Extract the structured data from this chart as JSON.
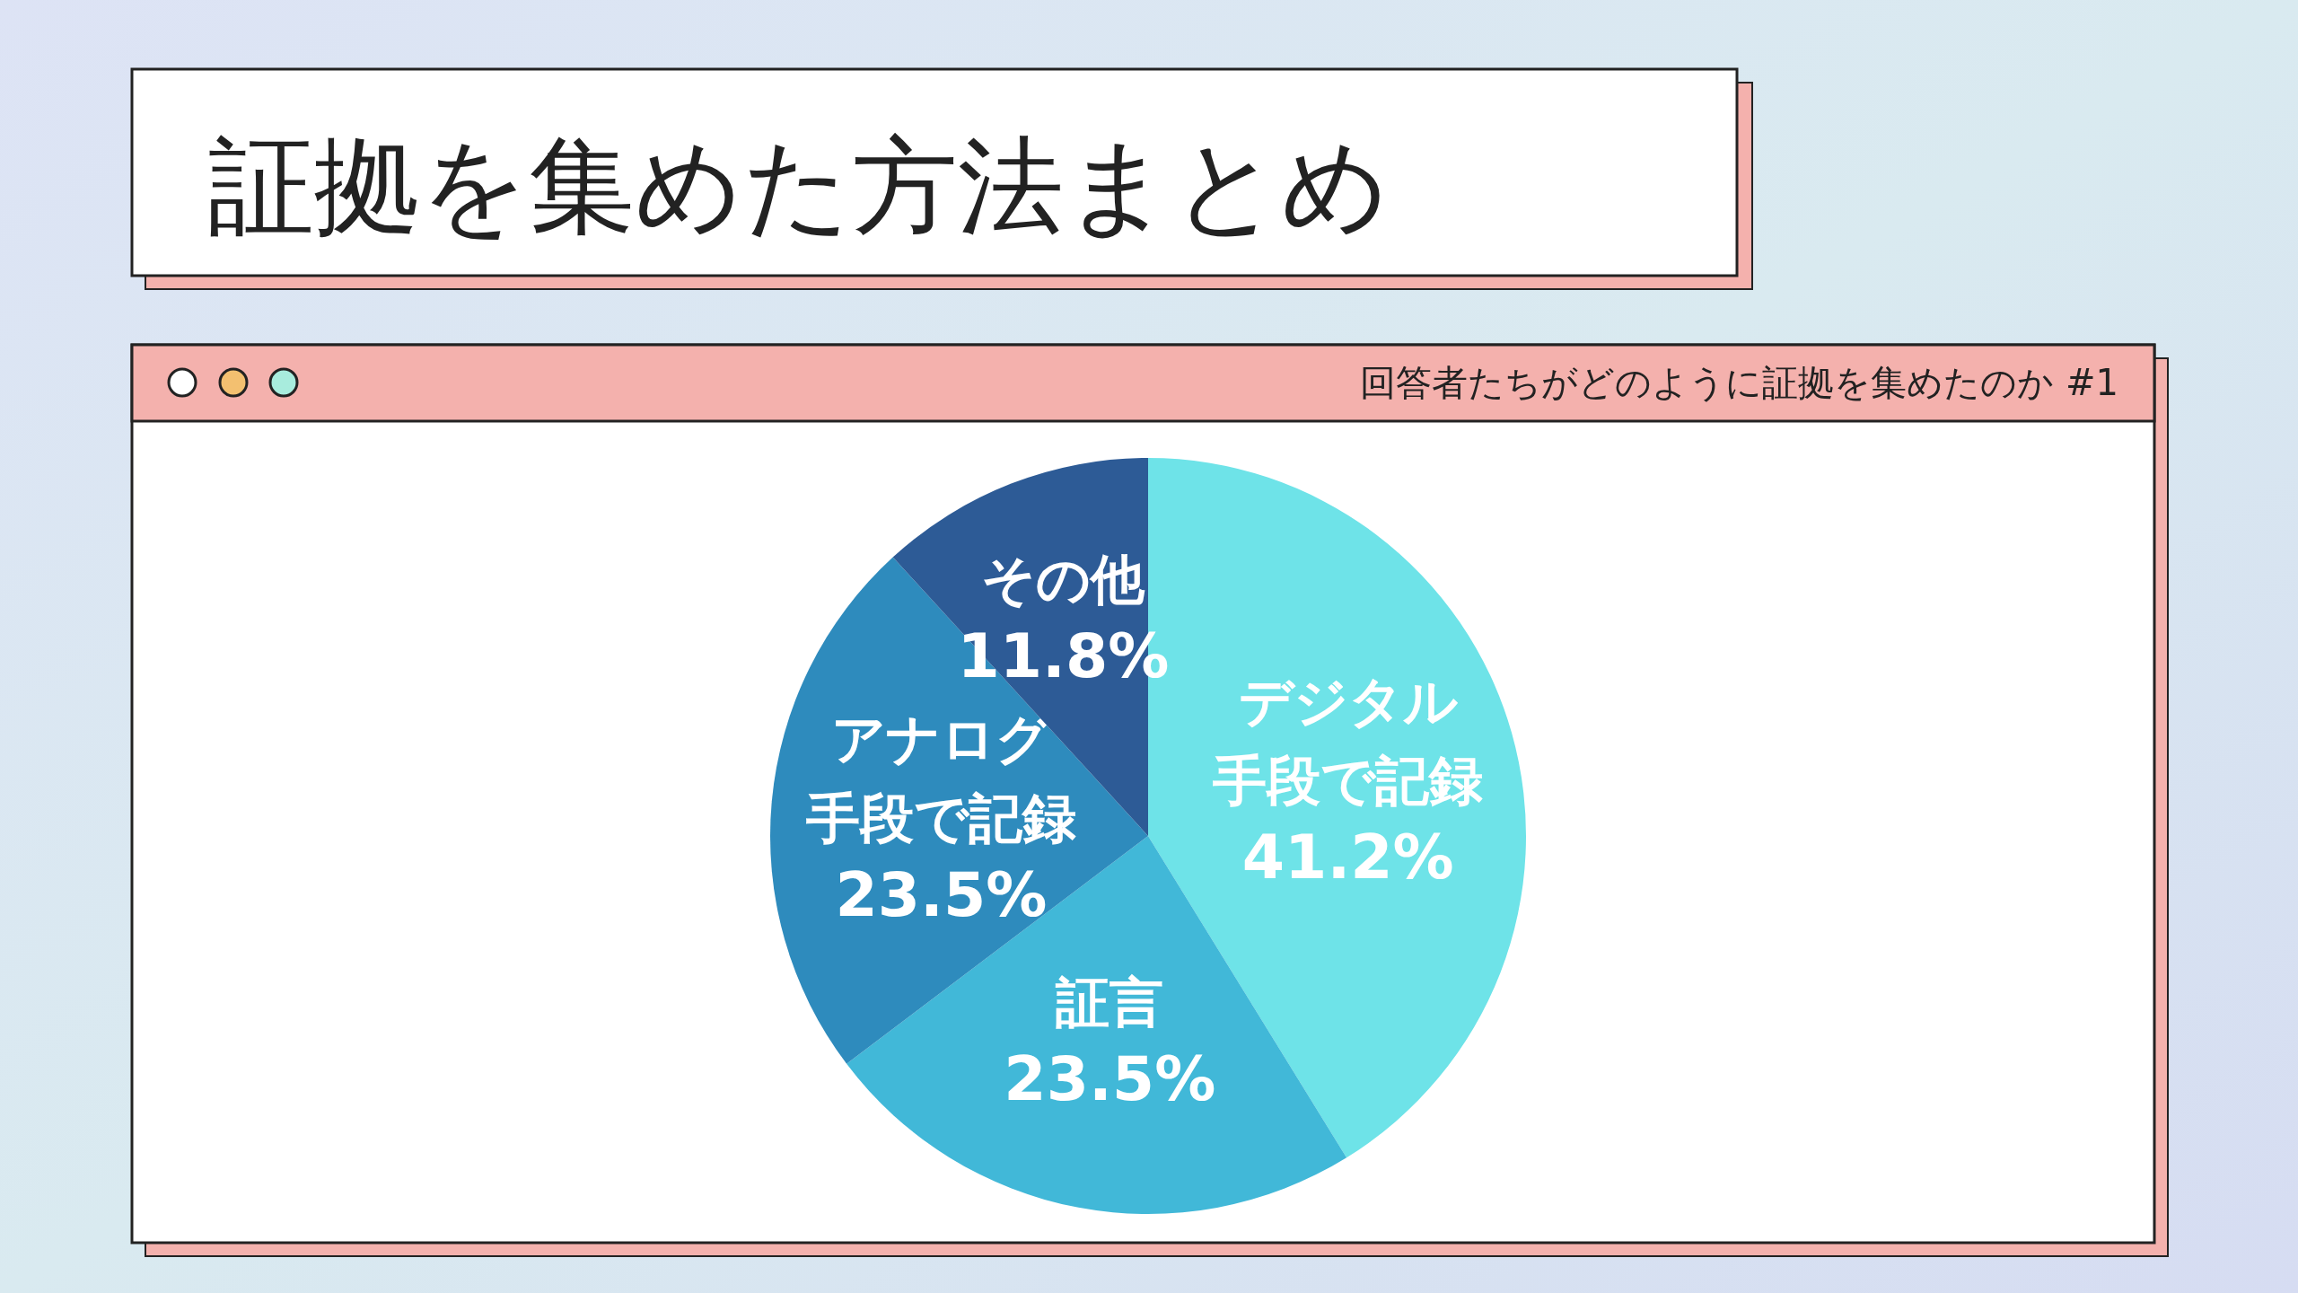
{
  "chart_data": {
    "type": "pie",
    "title": "証拠を集めた方法まとめ",
    "subtitle": "回答者たちがどのように証拠を集めたのか #1",
    "categories": [
      "デジタル手段で記録",
      "証言",
      "アナログ手段で記録",
      "その他"
    ],
    "values": [
      41.2,
      23.5,
      23.5,
      11.8
    ],
    "colors": [
      "#6ee3e8",
      "#41b8d8",
      "#2e8bbd",
      "#2d5b96"
    ],
    "value_labels": [
      "41.2%",
      "23.5%",
      "23.5%",
      "11.8%"
    ]
  }
}
